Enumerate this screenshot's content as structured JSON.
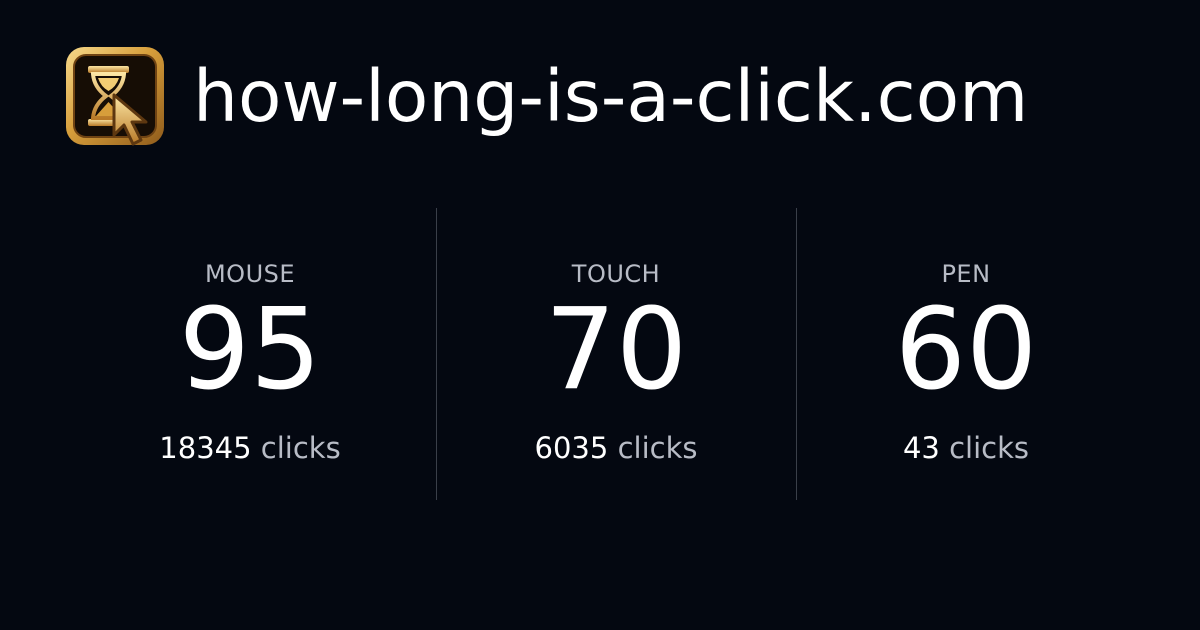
{
  "header": {
    "site_title": "how-long-is-a-click.com",
    "logo_icon": "hourglass-cursor-icon",
    "logo_color": "#e2b04d"
  },
  "stats": [
    {
      "label": "MOUSE",
      "value": "95",
      "count": "18345",
      "unit": "clicks"
    },
    {
      "label": "TOUCH",
      "value": "70",
      "count": "6035",
      "unit": "clicks"
    },
    {
      "label": "PEN",
      "value": "60",
      "count": "43",
      "unit": "clicks"
    }
  ],
  "colors": {
    "background": "#040811",
    "text": "#ffffff",
    "muted": "#b8bcc6",
    "divider": "#3a3f49"
  }
}
